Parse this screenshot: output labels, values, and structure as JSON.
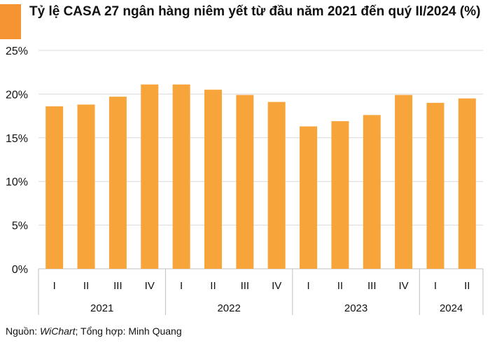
{
  "title": "Tỷ lệ CASA 27 ngân hàng niêm yết từ đầu năm 2021 đến quý II/2024 (%)",
  "colors": {
    "bar": "#F7A53B",
    "title_bar": "#F59432",
    "grid": "#D9D9D9",
    "axis": "#BFBFBF"
  },
  "source": {
    "prefix": "Nguồn: ",
    "italic": "WiChart",
    "suffix": "; Tổng hợp: Minh Quang"
  },
  "chart_data": {
    "type": "bar",
    "title": "Tỷ lệ CASA 27 ngân hàng niêm yết từ đầu năm 2021 đến quý II/2024 (%)",
    "ylim": [
      0,
      25
    ],
    "yticks": [
      "0%",
      "5%",
      "10%",
      "15%",
      "20%",
      "25%"
    ],
    "ytick_values": [
      0,
      5,
      10,
      15,
      20,
      25
    ],
    "grid": true,
    "groups": [
      {
        "year": "2021",
        "quarters": [
          "I",
          "II",
          "III",
          "IV"
        ]
      },
      {
        "year": "2022",
        "quarters": [
          "I",
          "II",
          "III",
          "IV"
        ]
      },
      {
        "year": "2023",
        "quarters": [
          "I",
          "II",
          "III",
          "IV"
        ]
      },
      {
        "year": "2024",
        "quarters": [
          "I",
          "II"
        ]
      }
    ],
    "values": [
      18.6,
      18.8,
      19.7,
      21.1,
      21.1,
      20.5,
      19.9,
      19.1,
      16.3,
      16.9,
      17.6,
      19.9,
      19.0,
      19.5
    ]
  }
}
